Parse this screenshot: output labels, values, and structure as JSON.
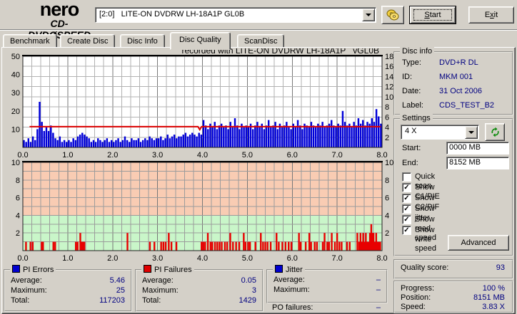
{
  "toolbar": {
    "logo": {
      "line1": "nero",
      "line2_left": "CD-DVD",
      "disc_glyph": "Ø",
      "line2_right": "SPEED"
    },
    "drive_combo": "[2:0]   LITE-ON DVDRW LH-18A1P GL0B",
    "start_button": "&Start",
    "exit_button": "E&xit"
  },
  "tabs": {
    "items": [
      {
        "label": "Benchmark"
      },
      {
        "label": "Create Disc"
      },
      {
        "label": "Disc Info"
      },
      {
        "label": "Disc Quality"
      },
      {
        "label": "ScanDisc"
      }
    ],
    "active": "Disc Quality"
  },
  "chart_data": [
    {
      "type": "bar",
      "title": "recorded with LITE-ON DVDRW LH-18A1P   vGL0B",
      "x_axis": {
        "range": [
          0,
          8
        ],
        "unit": "GB",
        "minor_step": 0.2,
        "ticks": [
          "0.0",
          "1.0",
          "2.0",
          "3.0",
          "4.0",
          "5.0",
          "6.0",
          "7.0",
          "8.0"
        ]
      },
      "left_axis": {
        "name": "PI Errors",
        "range": [
          0,
          50
        ],
        "ticks": [
          50,
          40,
          30,
          20,
          10
        ]
      },
      "right_axis": {
        "name": "Speed (X)",
        "range": [
          0,
          18
        ],
        "ticks": [
          18,
          16,
          14,
          12,
          10,
          8,
          6,
          4,
          2
        ]
      },
      "series": [
        {
          "name": "PI Errors",
          "type": "bars",
          "axis": "left",
          "color": "#0000d8",
          "x_start": 0.025,
          "x_step": 0.05,
          "values": [
            4,
            3,
            5,
            3,
            6,
            4,
            10,
            25,
            14,
            9,
            11,
            9,
            12,
            8,
            5,
            4,
            6,
            3,
            4,
            3,
            4,
            3,
            5,
            4,
            6,
            7,
            8,
            7,
            6,
            5,
            3,
            4,
            3,
            5,
            4,
            3,
            4,
            5,
            3,
            4,
            3,
            4,
            5,
            3,
            4,
            6,
            4,
            3,
            5,
            4,
            4,
            5,
            3,
            4,
            5,
            4,
            6,
            5,
            4,
            5,
            5,
            6,
            4,
            5,
            7,
            5,
            6,
            7,
            5,
            6,
            6,
            7,
            8,
            6,
            7,
            8,
            7,
            6,
            8,
            7,
            15,
            12,
            10,
            13,
            11,
            14,
            10,
            12,
            13,
            11,
            12,
            10,
            14,
            11,
            16,
            12,
            10,
            13,
            11,
            12,
            11,
            13,
            10,
            12,
            14,
            11,
            13,
            10,
            12,
            15,
            11,
            12,
            14,
            10,
            13,
            11,
            12,
            14,
            11,
            10,
            13,
            11,
            15,
            12,
            10,
            13,
            12,
            11,
            14,
            12,
            11,
            13,
            12,
            14,
            11,
            12,
            13,
            15,
            12,
            11,
            13,
            12,
            20,
            14,
            12,
            13,
            11,
            14,
            12,
            16,
            13,
            15,
            12,
            14,
            13,
            16,
            14,
            21,
            17,
            13
          ]
        },
        {
          "name": "Write speed",
          "type": "line",
          "axis": "right",
          "color": "#dd0000",
          "points": [
            [
              0.15,
              4.1
            ],
            [
              3.9,
              4.1
            ],
            [
              3.94,
              3.5
            ],
            [
              3.98,
              4.1
            ],
            [
              7.97,
              4.1
            ]
          ]
        }
      ]
    },
    {
      "type": "bar",
      "title": "",
      "x_axis": {
        "range": [
          0,
          8
        ],
        "unit": "GB",
        "minor_step": 0.2,
        "ticks": [
          "0.0",
          "1.0",
          "2.0",
          "3.0",
          "4.0",
          "5.0",
          "6.0",
          "7.0",
          "8.0"
        ]
      },
      "y_axis": {
        "name": "PI Failures",
        "range": [
          0,
          10
        ],
        "ticks": [
          10,
          8,
          6,
          4,
          2
        ]
      },
      "zones": [
        {
          "from": 0,
          "to": 4,
          "color": "#c9f6c9"
        },
        {
          "from": 4,
          "to": 10,
          "color": "#f9ccb3"
        }
      ],
      "series": [
        {
          "name": "PI Failures",
          "type": "bars",
          "color": "#e80000",
          "points": [
            [
              0.07,
              1
            ],
            [
              0.17,
              1
            ],
            [
              0.22,
              1
            ],
            [
              0.42,
              1
            ],
            [
              0.45,
              1
            ],
            [
              0.68,
              1
            ],
            [
              0.72,
              1
            ],
            [
              1.18,
              1
            ],
            [
              1.22,
              1
            ],
            [
              1.28,
              2
            ],
            [
              1.31,
              1
            ],
            [
              1.34,
              1
            ],
            [
              1.37,
              1
            ],
            [
              2.33,
              2
            ],
            [
              2.83,
              1
            ],
            [
              2.93,
              1
            ],
            [
              3.08,
              1
            ],
            [
              3.13,
              1
            ],
            [
              3.18,
              1
            ],
            [
              3.25,
              2
            ],
            [
              3.31,
              1
            ],
            [
              3.42,
              1
            ],
            [
              3.98,
              1
            ],
            [
              4.02,
              1
            ],
            [
              4.06,
              1
            ],
            [
              4.12,
              2
            ],
            [
              4.18,
              1
            ],
            [
              4.22,
              1
            ],
            [
              4.28,
              1
            ],
            [
              4.33,
              1
            ],
            [
              4.38,
              1
            ],
            [
              4.43,
              1
            ],
            [
              4.5,
              1
            ],
            [
              4.55,
              1
            ],
            [
              4.62,
              2
            ],
            [
              4.68,
              1
            ],
            [
              4.75,
              1
            ],
            [
              4.82,
              1
            ],
            [
              4.92,
              2
            ],
            [
              4.96,
              1
            ],
            [
              5.02,
              1
            ],
            [
              5.06,
              1
            ],
            [
              5.18,
              1
            ],
            [
              5.3,
              2
            ],
            [
              5.35,
              1
            ],
            [
              5.4,
              1
            ],
            [
              5.45,
              1
            ],
            [
              5.52,
              1
            ],
            [
              5.65,
              2
            ],
            [
              5.7,
              1
            ],
            [
              5.78,
              1
            ],
            [
              5.85,
              1
            ],
            [
              5.92,
              1
            ],
            [
              5.98,
              1
            ],
            [
              6.15,
              2
            ],
            [
              6.19,
              1
            ],
            [
              6.3,
              1
            ],
            [
              6.38,
              2
            ],
            [
              6.42,
              1
            ],
            [
              6.5,
              1
            ],
            [
              6.55,
              1
            ],
            [
              6.68,
              1
            ],
            [
              6.72,
              2
            ],
            [
              6.78,
              1
            ],
            [
              6.82,
              1
            ],
            [
              6.88,
              2
            ],
            [
              6.95,
              1
            ],
            [
              7.0,
              2
            ],
            [
              7.05,
              1
            ],
            [
              7.1,
              1
            ],
            [
              7.22,
              1
            ],
            [
              7.28,
              1
            ],
            [
              7.45,
              2
            ],
            [
              7.49,
              1
            ],
            [
              7.52,
              2
            ],
            [
              7.55,
              1
            ],
            [
              7.58,
              2
            ],
            [
              7.61,
              1
            ],
            [
              7.64,
              2
            ],
            [
              7.67,
              1
            ],
            [
              7.7,
              1
            ],
            [
              7.73,
              2
            ],
            [
              7.76,
              3
            ],
            [
              7.79,
              2
            ],
            [
              7.81,
              2
            ],
            [
              7.84,
              1
            ],
            [
              7.87,
              2
            ],
            [
              7.9,
              1
            ],
            [
              7.93,
              1
            ],
            [
              7.96,
              1
            ]
          ]
        }
      ]
    }
  ],
  "disc_info": {
    "title": "Disc info",
    "rows": [
      {
        "label": "Type:",
        "value": "DVD+R DL"
      },
      {
        "label": "ID:",
        "value": "MKM 001"
      },
      {
        "label": "Date:",
        "value": "31 Oct 2006"
      },
      {
        "label": "Label:",
        "value": "CDS_TEST_B2"
      }
    ]
  },
  "settings": {
    "title": "Settings",
    "speed_select": "4 X",
    "refresh_icon": "refresh-arrows",
    "start_label": "Start:",
    "start_value": "0000 MB",
    "end_label": "End:",
    "end_value": "8152 MB",
    "checkboxes": [
      {
        "label": "Quick scan",
        "checked": false
      },
      {
        "label": "Show C1/PIE",
        "checked": true
      },
      {
        "label": "Show C2/PIF",
        "checked": true
      },
      {
        "label": "Show jitter",
        "checked": true
      },
      {
        "label": "Show read speed",
        "checked": true
      },
      {
        "label": "Show write speed",
        "checked": true
      }
    ],
    "advanced_button": "Advanced"
  },
  "quality": {
    "label": "Quality score:",
    "value": "93"
  },
  "progress": {
    "rows": [
      {
        "label": "Progress:",
        "value": "100 %"
      },
      {
        "label": "Position:",
        "value": "8151 MB"
      },
      {
        "label": "Speed:",
        "value": "3.83 X"
      }
    ]
  },
  "stats": [
    {
      "title": "PI Errors",
      "marker_color": "#0000d0",
      "rows": [
        {
          "label": "Average:",
          "value": "5.46"
        },
        {
          "label": "Maximum:",
          "value": "25"
        },
        {
          "label": "Total:",
          "value": "117203"
        }
      ]
    },
    {
      "title": "PI Failures",
      "marker_color": "#e00000",
      "rows": [
        {
          "label": "Average:",
          "value": "0.05"
        },
        {
          "label": "Maximum:",
          "value": "3"
        },
        {
          "label": "Total:",
          "value": "1429"
        }
      ]
    },
    {
      "title": "Jitter",
      "marker_color": "#0000d0",
      "rows": [
        {
          "label": "Average:",
          "value": "–"
        },
        {
          "label": "Maximum:",
          "value": "–"
        }
      ]
    }
  ],
  "po_failures": {
    "label": "PO failures:",
    "value": "–"
  },
  "colors": {
    "window_bg": "#d4d0c8",
    "value_text": "#000080",
    "pie_bar": "#0000d8",
    "pif_bar": "#e80000",
    "speed_line": "#dd0000",
    "zone_good": "#c9f6c9",
    "zone_bad": "#f9ccb3"
  }
}
